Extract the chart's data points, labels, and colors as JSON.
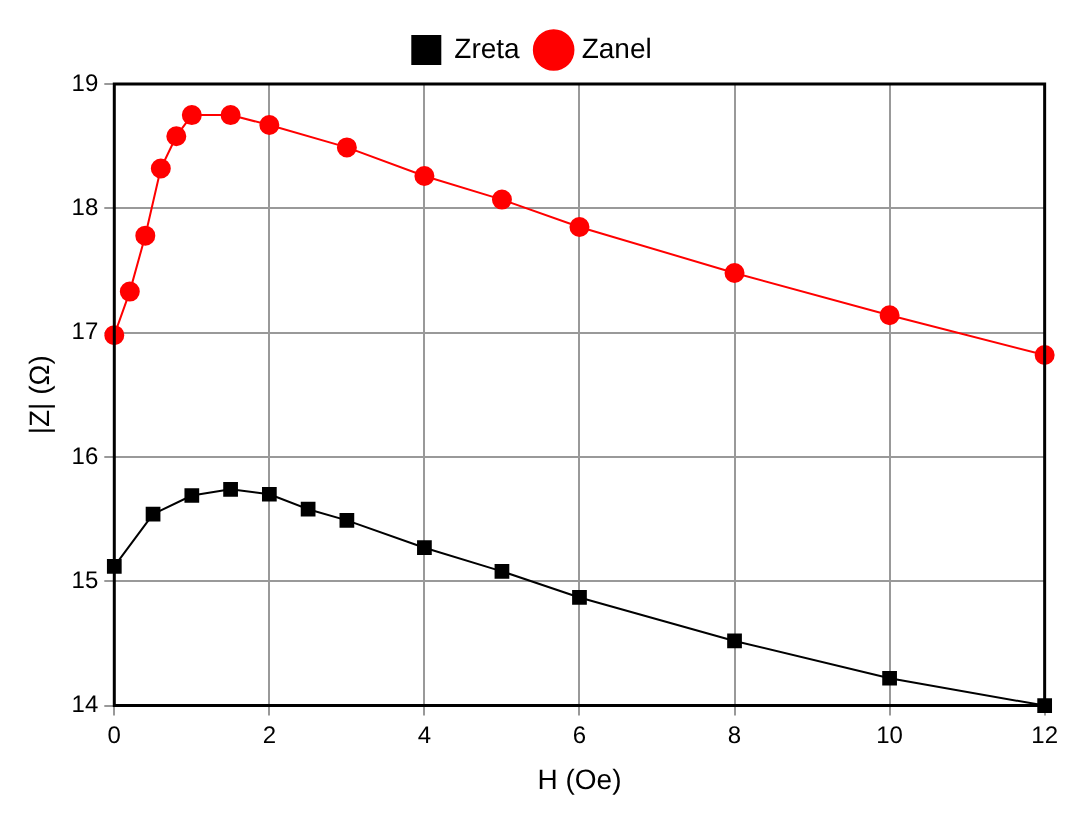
{
  "chart_data": {
    "type": "line",
    "xlabel": "H (Oe)",
    "ylabel": "|Z| (Ω)",
    "xlim": [
      0,
      12
    ],
    "xticks": [
      0,
      2,
      4,
      6,
      8,
      10,
      12
    ],
    "ylim": [
      14,
      19
    ],
    "yticks": [
      14,
      15,
      16,
      17,
      18,
      19
    ],
    "grid": true,
    "legend": "top",
    "series": [
      {
        "name": "Zreta",
        "color": "#000000",
        "marker": "square",
        "x": [
          0,
          0.5,
          1,
          1.5,
          2,
          2.5,
          3,
          4,
          5,
          6,
          8,
          10,
          12
        ],
        "values": [
          15.12,
          15.54,
          15.69,
          15.74,
          15.7,
          15.58,
          15.49,
          15.27,
          15.08,
          14.87,
          14.52,
          14.22,
          14.0
        ]
      },
      {
        "name": "Zanel",
        "color": "#ff0000",
        "marker": "circle",
        "x": [
          0,
          0.2,
          0.4,
          0.6,
          0.8,
          1,
          1.5,
          2,
          3,
          4,
          5,
          6,
          8,
          10,
          12
        ],
        "values": [
          16.98,
          17.33,
          17.78,
          18.32,
          18.58,
          18.75,
          18.75,
          18.67,
          18.49,
          18.26,
          18.07,
          17.85,
          17.48,
          17.14,
          16.82
        ]
      }
    ]
  }
}
